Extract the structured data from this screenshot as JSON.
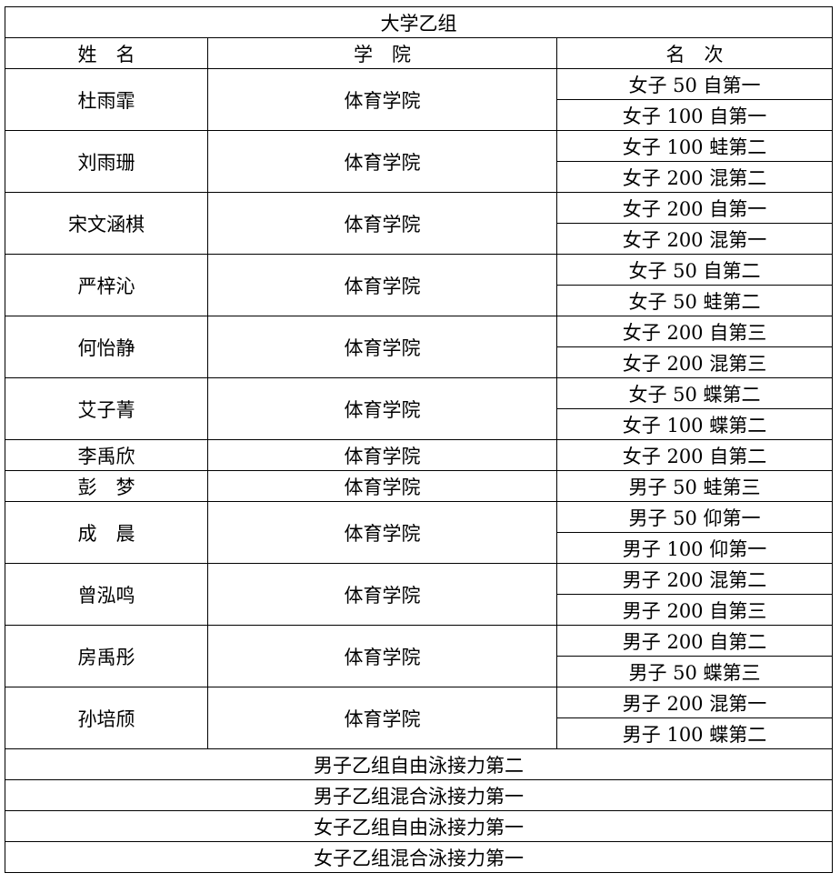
{
  "title": "大学乙组",
  "headers": [
    "姓　名",
    "学　院",
    "名　次"
  ],
  "athletes": [
    {
      "name": "杜雨霏",
      "college": "体育学院",
      "results": [
        "女子 50 自第一",
        "女子 100 自第一"
      ]
    },
    {
      "name": "刘雨珊",
      "college": "体育学院",
      "results": [
        "女子 100 蛙第二",
        "女子 200 混第二"
      ]
    },
    {
      "name": "宋文涵棋",
      "college": "体育学院",
      "results": [
        "女子 200 自第一",
        "女子 200 混第一"
      ]
    },
    {
      "name": "严梓沁",
      "college": "体育学院",
      "results": [
        "女子 50 自第二",
        "女子 50 蛙第二"
      ]
    },
    {
      "name": "何怡静",
      "college": "体育学院",
      "results": [
        "女子 200 自第三",
        "女子 200 混第三"
      ]
    },
    {
      "name": "艾子菁",
      "college": "体育学院",
      "results": [
        "女子 50 蝶第二",
        "女子 100 蝶第二"
      ]
    },
    {
      "name": "李禹欣",
      "college": "体育学院",
      "results": [
        "女子 200 自第二"
      ]
    },
    {
      "name": "彭　梦",
      "college": "体育学院",
      "results": [
        "男子 50 蛙第三"
      ]
    },
    {
      "name": "成　晨",
      "college": "体育学院",
      "results": [
        "男子 50 仰第一",
        "男子 100 仰第一"
      ]
    },
    {
      "name": "曾泓鸣",
      "college": "体育学院",
      "results": [
        "男子 200 混第二",
        "男子 200 自第三"
      ]
    },
    {
      "name": "房禹彤",
      "college": "体育学院",
      "results": [
        "男子 200 自第二",
        "男子 50 蝶第三"
      ]
    },
    {
      "name": "孙培颀",
      "college": "体育学院",
      "results": [
        "男子 200 混第一",
        "男子 100 蝶第二"
      ]
    }
  ],
  "relays": [
    "男子乙组自由泳接力第二",
    "男子乙组混合泳接力第一",
    "女子乙组自由泳接力第一",
    "女子乙组混合泳接力第一"
  ]
}
